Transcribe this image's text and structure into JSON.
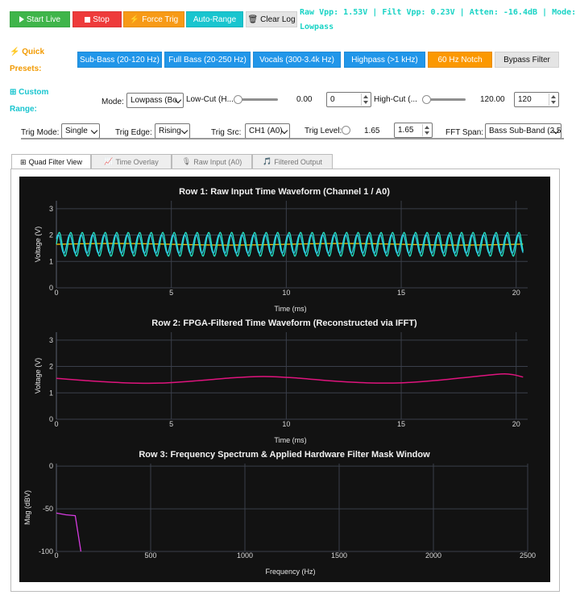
{
  "colors": {
    "green": "#3fb54a",
    "red": "#ee3b3b",
    "orange": "#f79a16",
    "teal": "#19c5cf",
    "blue": "#2196e9",
    "notch": "#fb9800",
    "bypass": "#e4e4e4",
    "plotbg": "#121212"
  },
  "controls": {
    "start_live": "Start Live",
    "stop": "Stop",
    "force_trig": "Force Trig",
    "auto_range": "Auto-Range",
    "clear_log": "Clear Log"
  },
  "status": {
    "line1": "Raw Vpp: 1.53V | Filt Vpp: 0.23V | Atten: -16.4dB | Mode:",
    "line2": "Lowpass"
  },
  "quick_presets": {
    "title_line1": "Quick",
    "title_line2": "Presets:",
    "items": [
      "Sub-Bass (20-120 Hz)",
      "Full Bass (20-250 Hz)",
      "Vocals (300-3.4k Hz)",
      "Highpass (>1 kHz)",
      "60 Hz Notch",
      "Bypass Filter"
    ]
  },
  "custom_range": {
    "title_line1": "Custom",
    "title_line2": "Range:",
    "mode_label": "Mode:",
    "mode_value": "Lowpass (Bo",
    "lowcut_label": "Low-Cut (H...",
    "lowcut_readout": "0.00",
    "lowcut_input": "0",
    "lowcut_level": 0.0,
    "highcut_label": "High-Cut (...",
    "highcut_readout": "120.00",
    "highcut_input": "120",
    "highcut_level": 0.0
  },
  "trigger": {
    "mode_label": "Trig Mode:",
    "mode_value": "Single",
    "edge_label": "Trig Edge:",
    "edge_value": "Rising",
    "src_label": "Trig Src:",
    "src_value": "CH1 (A0)",
    "level_label": "Trig Level:",
    "level_readout": "1.65",
    "level_input": "1.65",
    "fft_label": "FFT Span:",
    "fft_value": "Bass Sub-Band (2.5"
  },
  "tabs": [
    "Quad Filter View",
    "Time Overlay",
    "Raw Input (A0)",
    "Filtered Output"
  ],
  "chart_data": [
    {
      "type": "line",
      "title": "Row 1: Raw Input Time Waveform (Channel 1 / A0)",
      "xlabel": "Time (ms)",
      "ylabel": "Voltage (V)",
      "xlim": [
        0,
        20.5
      ],
      "ylim": [
        0,
        3.3
      ],
      "xticks": [
        0,
        5,
        10,
        15,
        20
      ],
      "yticks": [
        0,
        1,
        2,
        3
      ],
      "series": [
        {
          "name": "",
          "color": "#f2c200",
          "kind": "sine",
          "offset": 1.65,
          "amplitude": 0.03,
          "freq_khz": 0.1
        },
        {
          "name": "",
          "color": "#24e3c2",
          "kind": "sine",
          "offset": 1.65,
          "amplitude": 0.45,
          "freq_khz": 2.0
        },
        {
          "name": "",
          "color": "#2ec7e6",
          "kind": "sine",
          "offset": 1.66,
          "amplitude": 0.35,
          "freq_khz": 2.0,
          "phase": 0.6
        }
      ]
    },
    {
      "type": "line",
      "title": "Row 2: FPGA-Filtered Time Waveform (Reconstructed via IFFT)",
      "xlabel": "Time (ms)",
      "ylabel": "Voltage (V)",
      "xlim": [
        0,
        20.5
      ],
      "ylim": [
        0,
        3.3
      ],
      "xticks": [
        0,
        5,
        10,
        15,
        20
      ],
      "yticks": [
        0,
        1,
        2,
        3
      ],
      "series": [
        {
          "name": "",
          "color": "#e0147e",
          "x": [
            0,
            1.5,
            3,
            4.5,
            6,
            7.5,
            9,
            10.5,
            12,
            13.5,
            15,
            16.5,
            18,
            19.5,
            20.3
          ],
          "y": [
            1.55,
            1.45,
            1.38,
            1.37,
            1.45,
            1.56,
            1.62,
            1.56,
            1.45,
            1.38,
            1.38,
            1.47,
            1.6,
            1.72,
            1.6
          ]
        }
      ]
    },
    {
      "type": "line",
      "title": "Row 3: Frequency Spectrum & Applied Hardware Filter Mask Window",
      "xlabel": "Frequency (Hz)",
      "ylabel": "Mag (dBV)",
      "xlim": [
        0,
        2500
      ],
      "ylim": [
        -100,
        3
      ],
      "xticks": [
        0,
        500,
        1000,
        1500,
        2000,
        2500
      ],
      "yticks": [
        0,
        -50,
        -100
      ],
      "series": [
        {
          "name": "",
          "color": "#d63be0",
          "x": [
            0,
            50,
            100,
            130
          ],
          "y": [
            -55,
            -57,
            -58,
            -100
          ]
        }
      ]
    }
  ]
}
